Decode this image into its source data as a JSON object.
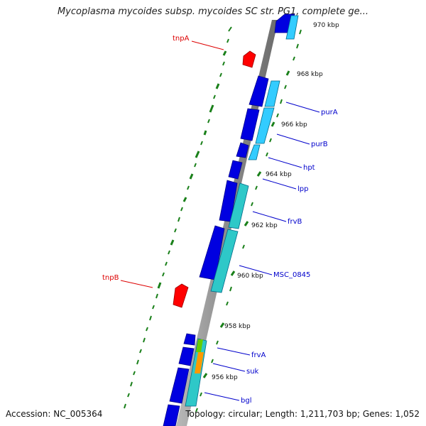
{
  "title": "Mycoplasma mycoides subsp. mycoides SC str. PG1, complete ge...",
  "accession": "Accession: NC_005364",
  "summary": "Topology: circular; Length: 1,211,703 bp; Genes: 1,052",
  "ticks": [
    "970 kbp",
    "968 kbp",
    "966 kbp",
    "964 kbp",
    "962 kbp",
    "960 kbp",
    "958 kbp",
    "956 kbp"
  ],
  "gene_labels": [
    "tnpA",
    "purA",
    "purB",
    "hpt",
    "lpp",
    "frvB",
    "tnpB",
    "MSC_0845",
    "frvA",
    "suk",
    "bgl"
  ],
  "colors": {
    "backbone": "#8c8c8c",
    "gene_forward": "#0000e0",
    "gene_cyan": "#33ccff",
    "gene_teal": "#2ec8c8",
    "orange": "#ff9900",
    "green": "#66cc00",
    "transposase": "#ff0000",
    "gc_track": "#1a801a",
    "label_blue": "#0000cc",
    "label_red": "#dd0000"
  }
}
